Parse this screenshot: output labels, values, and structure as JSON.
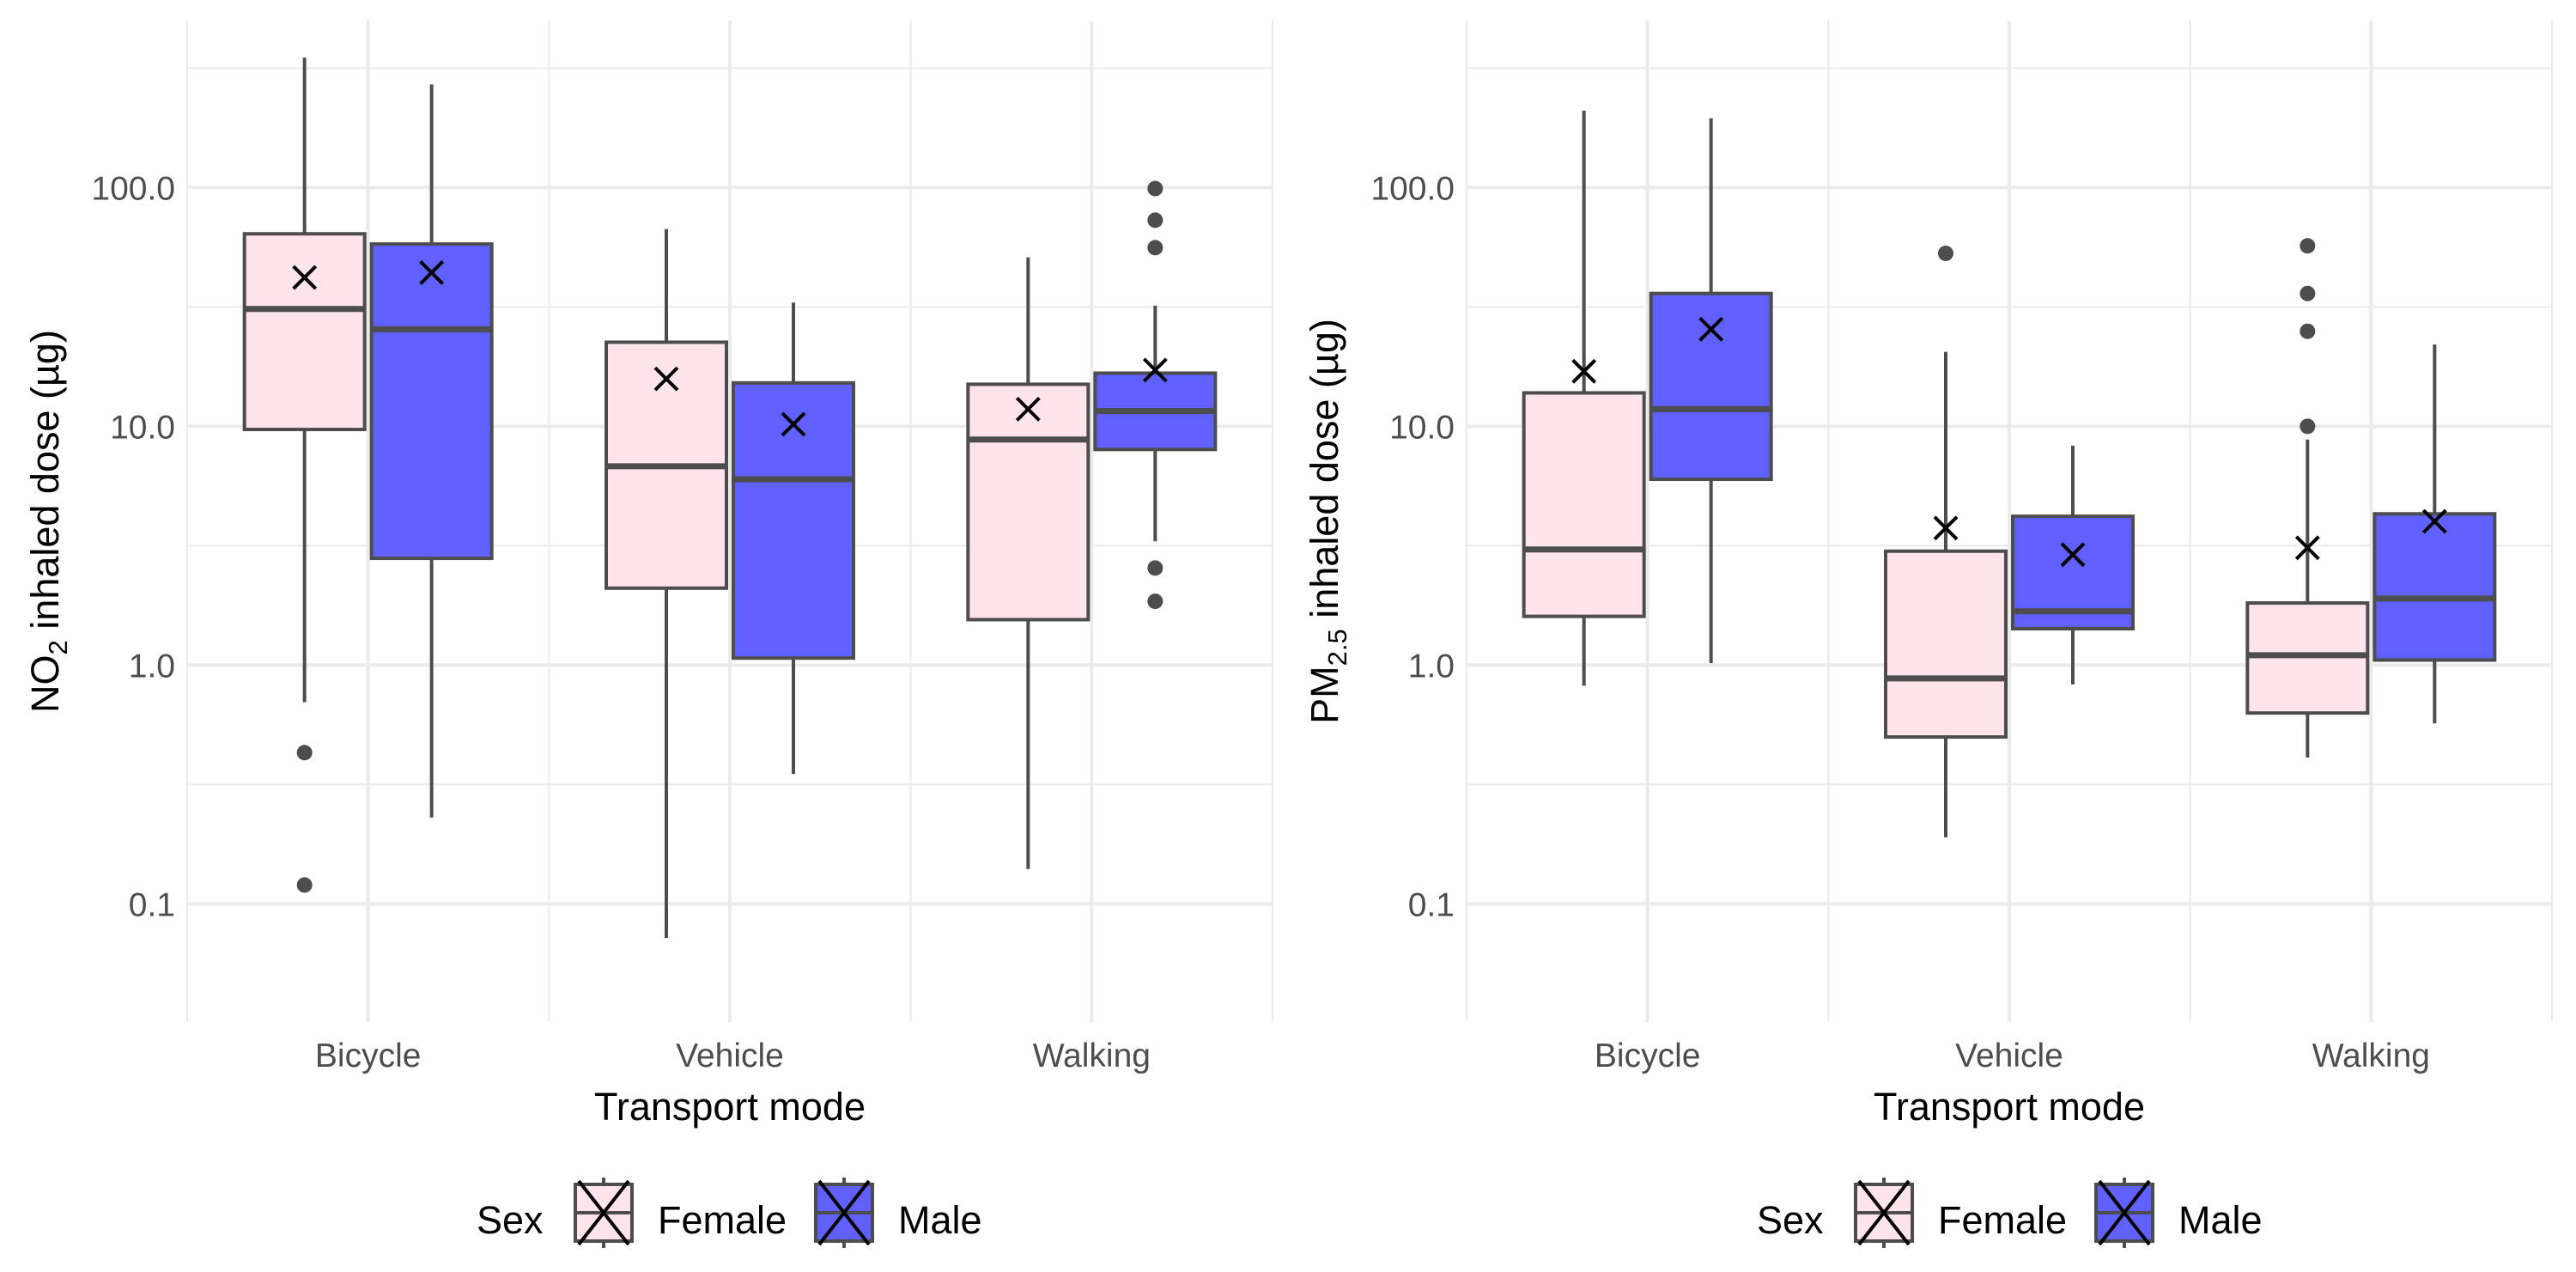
{
  "colors": {
    "female_fill": "#FFE4EC",
    "male_fill": "#6060FF",
    "box_stroke": "#4D4D4D",
    "grid": "#EBEBEB",
    "axis_text": "#4D4D4D",
    "title_text": "#000000"
  },
  "legend": {
    "title": "Sex",
    "entries": [
      {
        "label": "Female",
        "fill": "#FFE4EC"
      },
      {
        "label": "Male",
        "fill": "#6060FF"
      }
    ]
  },
  "chart_data": [
    {
      "type": "boxplot",
      "scale": "log10",
      "ylabel": {
        "pre": "NO",
        "sub": "2",
        "post": " inhaled dose  (µg)"
      },
      "xlabel": "Transport mode",
      "ylim": [
        0.032,
        500
      ],
      "yticks": [
        0.1,
        1.0,
        10.0,
        100.0
      ],
      "ytick_labels": [
        "0.1",
        "1.0",
        "10.0",
        "100.0"
      ],
      "categories": [
        "Bicycle",
        "Vehicle",
        "Walking"
      ],
      "series": [
        {
          "name": "Female",
          "boxes": [
            {
              "category": "Bicycle",
              "low": 0.7,
              "q1": 9.7,
              "median": 31,
              "q3": 64,
              "high": 350,
              "mean": 42,
              "outliers": [
                0.43,
                0.12
              ]
            },
            {
              "category": "Vehicle",
              "low": 0.072,
              "q1": 2.1,
              "median": 6.8,
              "q3": 22.5,
              "high": 67,
              "mean": 15.8,
              "outliers": []
            },
            {
              "category": "Walking",
              "low": 0.14,
              "q1": 1.55,
              "median": 8.8,
              "q3": 15,
              "high": 51,
              "mean": 11.8,
              "outliers": []
            }
          ]
        },
        {
          "name": "Male",
          "boxes": [
            {
              "category": "Bicycle",
              "low": 0.23,
              "q1": 2.8,
              "median": 25.5,
              "q3": 58,
              "high": 270,
              "mean": 44,
              "outliers": []
            },
            {
              "category": "Vehicle",
              "low": 0.35,
              "q1": 1.07,
              "median": 6.0,
              "q3": 15.2,
              "high": 33,
              "mean": 10.2,
              "outliers": []
            },
            {
              "category": "Walking",
              "low": 3.3,
              "q1": 8.0,
              "median": 11.6,
              "q3": 16.7,
              "high": 32,
              "mean": 17.2,
              "outliers": [
                99,
                73,
                56,
                2.55,
                1.85
              ]
            }
          ]
        }
      ]
    },
    {
      "type": "boxplot",
      "scale": "log10",
      "ylabel": {
        "pre": "PM",
        "sub": "2.5",
        "post": " inhaled dose  (µg)"
      },
      "xlabel": "Transport mode",
      "ylim": [
        0.032,
        500
      ],
      "yticks": [
        0.1,
        1.0,
        10.0,
        100.0
      ],
      "ytick_labels": [
        "0.1",
        "1.0",
        "10.0",
        "100.0"
      ],
      "categories": [
        "Bicycle",
        "Vehicle",
        "Walking"
      ],
      "series": [
        {
          "name": "Female",
          "boxes": [
            {
              "category": "Bicycle",
              "low": 0.82,
              "q1": 1.6,
              "median": 3.05,
              "q3": 13.8,
              "high": 210,
              "mean": 17,
              "outliers": []
            },
            {
              "category": "Vehicle",
              "low": 0.19,
              "q1": 0.5,
              "median": 0.88,
              "q3": 3.0,
              "high": 20.5,
              "mean": 3.75,
              "outliers": [
                53
              ]
            },
            {
              "category": "Walking",
              "low": 0.41,
              "q1": 0.63,
              "median": 1.1,
              "q3": 1.82,
              "high": 8.8,
              "mean": 3.1,
              "outliers": [
                57,
                36,
                25,
                10
              ]
            }
          ]
        },
        {
          "name": "Male",
          "boxes": [
            {
              "category": "Bicycle",
              "low": 1.02,
              "q1": 6.0,
              "median": 11.8,
              "q3": 36,
              "high": 195,
              "mean": 25.5,
              "outliers": []
            },
            {
              "category": "Vehicle",
              "low": 0.83,
              "q1": 1.42,
              "median": 1.68,
              "q3": 4.2,
              "high": 8.3,
              "mean": 2.9,
              "outliers": []
            },
            {
              "category": "Walking",
              "low": 0.57,
              "q1": 1.05,
              "median": 1.9,
              "q3": 4.3,
              "high": 22,
              "mean": 4.0,
              "outliers": []
            }
          ]
        }
      ]
    }
  ]
}
